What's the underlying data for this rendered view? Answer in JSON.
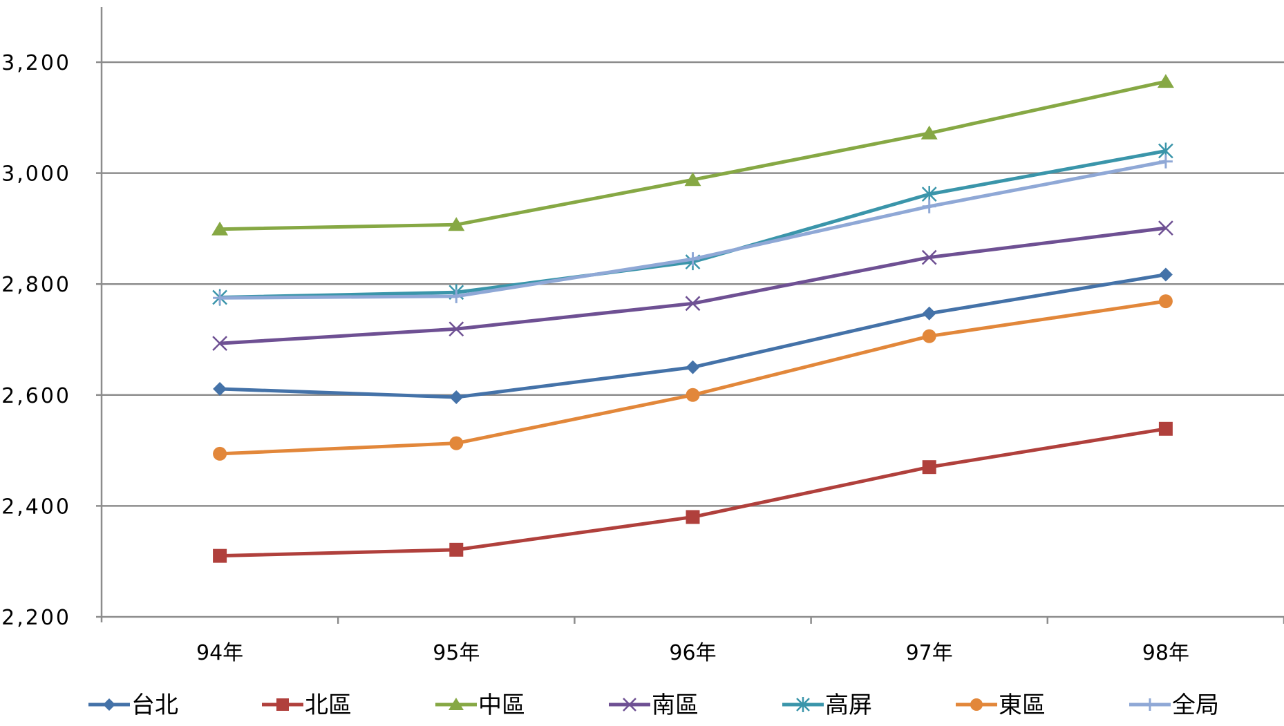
{
  "chart_data": {
    "type": "line",
    "categories": [
      "94年",
      "95年",
      "96年",
      "97年",
      "98年"
    ],
    "ylim": [
      2200,
      3300
    ],
    "yticks": [
      2200,
      2400,
      2600,
      2800,
      3000,
      3200
    ],
    "ytick_labels": [
      "2,200",
      "2,400",
      "2,600",
      "2,800",
      "3,000",
      "3,200"
    ],
    "grid": "horizontal",
    "legend_position": "bottom",
    "series": [
      {
        "name": "台北",
        "values": [
          2611,
          2596,
          2650,
          2747,
          2817
        ],
        "color": "#4472A8",
        "marker": "diamond"
      },
      {
        "name": "北區",
        "values": [
          2310,
          2321,
          2380,
          2470,
          2539
        ],
        "color": "#B0403C",
        "marker": "square"
      },
      {
        "name": "中區",
        "values": [
          2899,
          2907,
          2988,
          3072,
          3165
        ],
        "color": "#86A844",
        "marker": "triangle"
      },
      {
        "name": "南區",
        "values": [
          2693,
          2719,
          2765,
          2848,
          2901
        ],
        "color": "#6E5093",
        "marker": "x"
      },
      {
        "name": "高屏",
        "values": [
          2776,
          2785,
          2840,
          2962,
          3040
        ],
        "color": "#3A95AA",
        "marker": "star"
      },
      {
        "name": "東區",
        "values": [
          2494,
          2513,
          2600,
          2706,
          2769
        ],
        "color": "#E2873A",
        "marker": "circle"
      },
      {
        "name": "全局",
        "values": [
          2775,
          2778,
          2845,
          2940,
          3021
        ],
        "color": "#8FA8D6",
        "marker": "plus"
      }
    ]
  }
}
